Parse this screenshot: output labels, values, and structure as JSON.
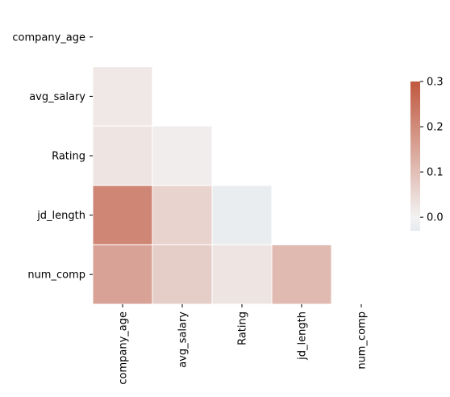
{
  "chart_data": {
    "type": "heatmap",
    "title": "",
    "xlabel": "",
    "ylabel": "",
    "mask": "upper-triangle-including-diagonal",
    "x_labels": [
      "company_age",
      "avg_salary",
      "Rating",
      "jd_length",
      "num_comp"
    ],
    "y_labels": [
      "company_age",
      "avg_salary",
      "Rating",
      "jd_length",
      "num_comp"
    ],
    "matrix": [
      [
        null,
        null,
        null,
        null,
        null
      ],
      [
        0.02,
        null,
        null,
        null,
        null
      ],
      [
        0.025,
        0.01,
        null,
        null,
        null
      ],
      [
        0.21,
        0.06,
        -0.02,
        null,
        null
      ],
      [
        0.155,
        0.07,
        0.025,
        0.11,
        null
      ]
    ],
    "colorbar": {
      "range": [
        -0.03,
        0.3
      ],
      "ticks": [
        "0.0",
        "0.1",
        "0.2",
        "0.3"
      ],
      "tick_values": [
        0.0,
        0.1,
        0.2,
        0.3
      ],
      "placement": "right"
    },
    "colors": {
      "negative_end": "#e6eaef",
      "center": "#f2f2f2",
      "positive_end": "#c0583f",
      "cell_border": "#ffffff",
      "text": "#000000"
    }
  }
}
